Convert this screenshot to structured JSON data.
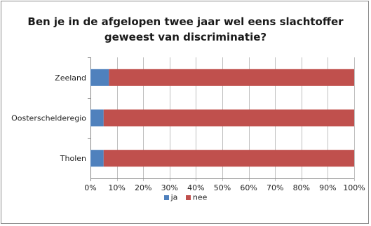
{
  "chart_data": {
    "type": "bar",
    "orientation": "horizontal",
    "stacked": "percent",
    "title_lines": [
      "Ben je in de afgelopen twee jaar wel eens slachtoffer",
      "geweest van discriminatie?"
    ],
    "categories": [
      "Zeeland",
      "Oosterschelderegio",
      "Tholen"
    ],
    "series": [
      {
        "name": "ja",
        "color": "#4f81bd",
        "values": [
          7,
          5,
          5
        ]
      },
      {
        "name": "nee",
        "color": "#c0504d",
        "values": [
          93,
          95,
          95
        ]
      }
    ],
    "xlim": [
      0,
      100
    ],
    "xticks": [
      "0%",
      "10%",
      "20%",
      "30%",
      "40%",
      "50%",
      "60%",
      "70%",
      "80%",
      "90%",
      "100%"
    ],
    "grid": true,
    "legend_position": "bottom"
  }
}
